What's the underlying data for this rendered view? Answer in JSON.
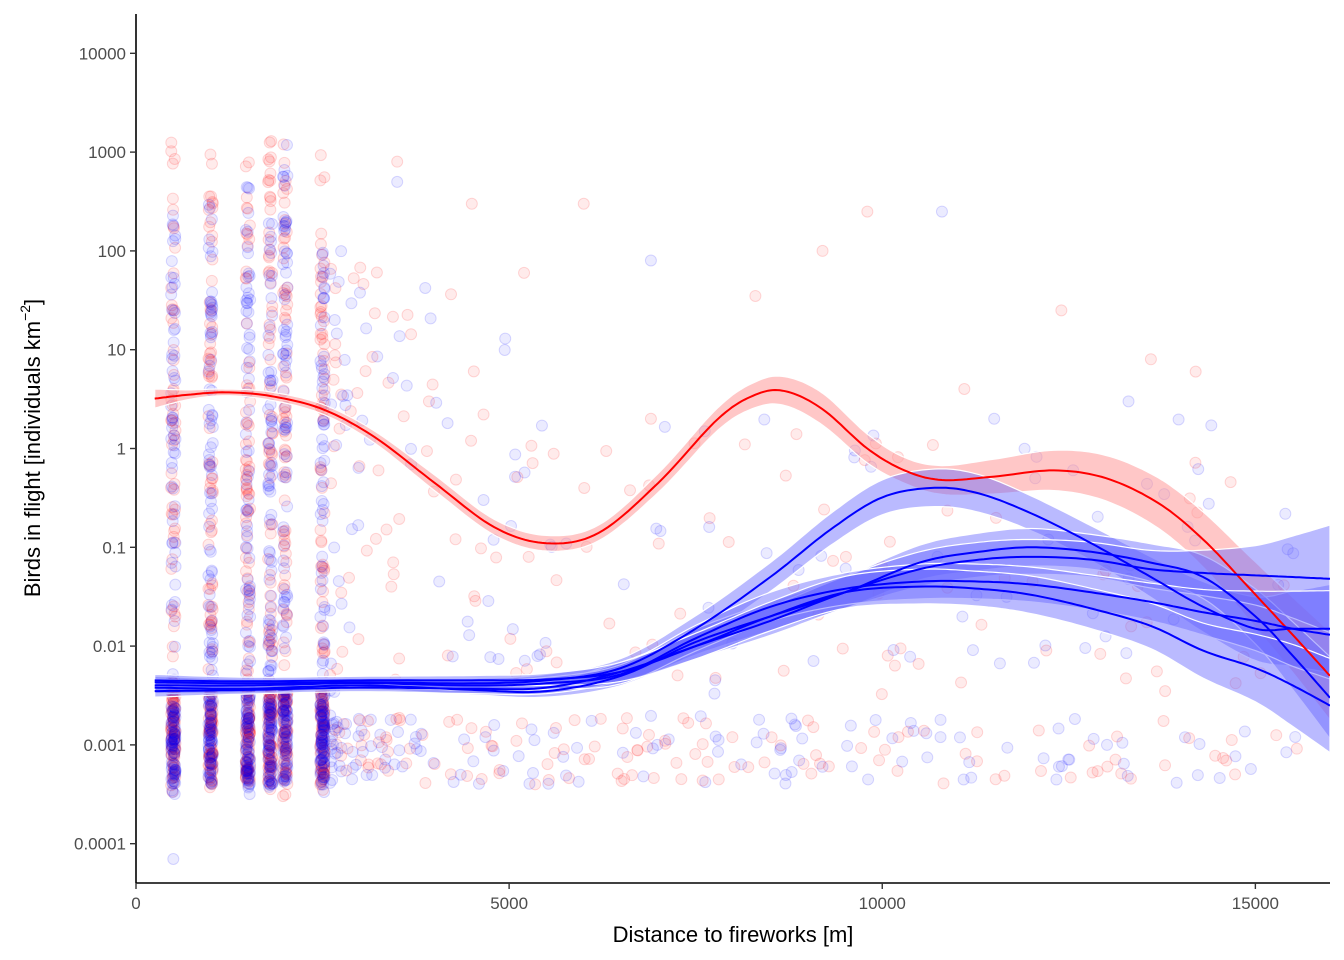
{
  "chart_data": {
    "type": "scatter",
    "xlabel": "Distance to fireworks [m]",
    "ylabel": {
      "prefix": "Birds in flight",
      "units": "individuals km",
      "exponent": "−2"
    },
    "scale": {
      "y": "log10"
    },
    "xlim": [
      0,
      16000
    ],
    "ylim": [
      4e-05,
      25000
    ],
    "x_ticks": [
      {
        "value": 0,
        "label": "0"
      },
      {
        "value": 5000,
        "label": "5000"
      },
      {
        "value": 10000,
        "label": "10000"
      },
      {
        "value": 15000,
        "label": "15000"
      }
    ],
    "y_ticks": [
      {
        "value": 0.0001,
        "label": "0.0001"
      },
      {
        "value": 0.001,
        "label": "0.001"
      },
      {
        "value": 0.01,
        "label": "0.01"
      },
      {
        "value": 0.1,
        "label": "0.1"
      },
      {
        "value": 1,
        "label": "1"
      },
      {
        "value": 10,
        "label": "10"
      },
      {
        "value": 100,
        "label": "100"
      },
      {
        "value": 1000,
        "label": "1000"
      },
      {
        "value": 10000,
        "label": "10000"
      }
    ],
    "grid": false,
    "legend": "none",
    "colors": {
      "red": "#ff0000",
      "blue": "#0000ff",
      "red_band": "#ff9999",
      "blue_band": "#6666ff",
      "axis": "#000000"
    },
    "scatter_series": [
      {
        "color": "red",
        "opacity": 0.08,
        "columns": [
          {
            "x": 500,
            "y_range": [
              0.0003,
              2500
            ]
          },
          {
            "x": 1000,
            "y_range": [
              0.0003,
              1400
            ]
          },
          {
            "x": 1500,
            "y_range": [
              0.0003,
              800
            ]
          },
          {
            "x": 1800,
            "y_range": [
              0.0003,
              1300
            ]
          },
          {
            "x": 2000,
            "y_range": [
              0.0003,
              1300
            ]
          },
          {
            "x": 2500,
            "y_range": [
              0.0003,
              1300
            ]
          }
        ],
        "scatter": [
          {
            "x": 3500,
            "y": 800
          },
          {
            "x": 4500,
            "y": 300
          },
          {
            "x": 5200,
            "y": 60
          },
          {
            "x": 6000,
            "y": 300
          },
          {
            "x": 8300,
            "y": 35
          },
          {
            "x": 9200,
            "y": 100
          },
          {
            "x": 9800,
            "y": 250
          },
          {
            "x": 12400,
            "y": 25
          },
          {
            "x": 13600,
            "y": 8
          },
          {
            "x": 14200,
            "y": 6
          },
          {
            "x": 11100,
            "y": 4
          },
          {
            "x": 6900,
            "y": 2
          }
        ]
      },
      {
        "color": "blue",
        "opacity": 0.08,
        "columns": [
          {
            "x": 500,
            "y_range": [
              0.0003,
              400
            ]
          },
          {
            "x": 1000,
            "y_range": [
              0.0003,
              300
            ]
          },
          {
            "x": 1500,
            "y_range": [
              0.0003,
              450
            ]
          },
          {
            "x": 1800,
            "y_range": [
              0.0003,
              200
            ]
          },
          {
            "x": 2000,
            "y_range": [
              0.0003,
              1400
            ]
          },
          {
            "x": 2500,
            "y_range": [
              0.0003,
              100
            ]
          }
        ],
        "scatter": [
          {
            "x": 500,
            "y": 7e-05
          },
          {
            "x": 3500,
            "y": 500
          },
          {
            "x": 6900,
            "y": 80
          },
          {
            "x": 10800,
            "y": 250
          },
          {
            "x": 9200,
            "y": 0.0006
          },
          {
            "x": 10100,
            "y": 0.05
          },
          {
            "x": 13300,
            "y": 3
          },
          {
            "x": 11500,
            "y": 2
          }
        ]
      }
    ],
    "smooth_series": [
      {
        "color": "red",
        "x": [
          250,
          700,
          1200,
          1800,
          2500,
          3200,
          4000,
          4800,
          5500,
          6200,
          7000,
          7800,
          8300,
          8700,
          9200,
          9800,
          10300,
          10800,
          11500,
          12300,
          13000,
          13700,
          14300,
          14900,
          15500,
          16000
        ],
        "y": [
          3.2,
          3.5,
          3.7,
          3.4,
          2.5,
          1.3,
          0.45,
          0.16,
          0.11,
          0.14,
          0.45,
          2.0,
          3.5,
          3.8,
          2.5,
          1.0,
          0.6,
          0.48,
          0.52,
          0.6,
          0.5,
          0.28,
          0.12,
          0.04,
          0.013,
          0.005
        ],
        "band_ratio": [
          1.25,
          1.12,
          1.08,
          1.1,
          1.12,
          1.15,
          1.2,
          1.2,
          1.2,
          1.2,
          1.25,
          1.3,
          1.35,
          1.4,
          1.45,
          1.4,
          1.35,
          1.4,
          1.5,
          1.6,
          1.7,
          1.8,
          1.9,
          2.1,
          2.4,
          2.8
        ]
      },
      {
        "color": "blue",
        "x": [
          250,
          1500,
          3000,
          4500,
          5500,
          6500,
          7500,
          8500,
          9300,
          10000,
          10700,
          11300,
          12000,
          12800,
          13600,
          14300,
          15000,
          15500,
          16000
        ],
        "y": [
          0.0043,
          0.0042,
          0.0043,
          0.0042,
          0.0045,
          0.006,
          0.015,
          0.05,
          0.15,
          0.32,
          0.4,
          0.35,
          0.22,
          0.11,
          0.05,
          0.025,
          0.015,
          0.015,
          0.015
        ],
        "band_ratio": [
          1.15,
          1.1,
          1.1,
          1.12,
          1.15,
          1.25,
          1.35,
          1.4,
          1.45,
          1.5,
          1.55,
          1.55,
          1.5,
          1.5,
          1.6,
          1.8,
          2.1,
          2.4,
          2.8
        ]
      },
      {
        "color": "blue",
        "x": [
          250,
          1500,
          3000,
          4500,
          5500,
          6500,
          7500,
          8500,
          9500,
          10500,
          11300,
          12000,
          12800,
          13600,
          14300,
          15000,
          15500,
          16000
        ],
        "y": [
          0.0038,
          0.0037,
          0.004,
          0.0036,
          0.0035,
          0.005,
          0.011,
          0.02,
          0.035,
          0.07,
          0.09,
          0.1,
          0.09,
          0.07,
          0.05,
          0.02,
          0.008,
          0.003
        ],
        "band_ratio": [
          1.15,
          1.1,
          1.1,
          1.12,
          1.15,
          1.25,
          1.35,
          1.4,
          1.45,
          1.5,
          1.55,
          1.55,
          1.5,
          1.55,
          1.65,
          1.9,
          2.2,
          2.6
        ]
      },
      {
        "color": "blue",
        "x": [
          250,
          1500,
          3000,
          4500,
          5500,
          6500,
          7500,
          8500,
          9500,
          10500,
          11300,
          12000,
          12800,
          13600,
          14300,
          15000,
          15500,
          16000
        ],
        "y": [
          0.0035,
          0.0036,
          0.0038,
          0.0037,
          0.0038,
          0.0055,
          0.01,
          0.018,
          0.035,
          0.06,
          0.075,
          0.08,
          0.075,
          0.06,
          0.055,
          0.052,
          0.05,
          0.048
        ],
        "band_ratio": [
          1.15,
          1.1,
          1.1,
          1.12,
          1.15,
          1.25,
          1.35,
          1.4,
          1.45,
          1.5,
          1.5,
          1.5,
          1.5,
          1.55,
          1.7,
          2.0,
          2.6,
          3.5
        ]
      },
      {
        "color": "blue",
        "x": [
          250,
          1500,
          3000,
          4500,
          5500,
          6500,
          7500,
          8500,
          9500,
          10500,
          11300,
          12000,
          12800,
          13600,
          14300,
          15000,
          15500,
          16000
        ],
        "y": [
          0.004,
          0.004,
          0.0042,
          0.004,
          0.0042,
          0.0052,
          0.012,
          0.025,
          0.038,
          0.045,
          0.045,
          0.042,
          0.035,
          0.028,
          0.022,
          0.018,
          0.015,
          0.013
        ],
        "band_ratio": [
          1.15,
          1.1,
          1.1,
          1.12,
          1.15,
          1.25,
          1.35,
          1.4,
          1.45,
          1.5,
          1.5,
          1.5,
          1.5,
          1.55,
          1.7,
          2.0,
          2.4,
          2.8
        ]
      },
      {
        "color": "blue",
        "x": [
          250,
          1500,
          3000,
          4500,
          5500,
          6500,
          7500,
          8500,
          9500,
          10500,
          11300,
          12000,
          12800,
          13600,
          14300,
          15000,
          15500,
          16000
        ],
        "y": [
          0.0045,
          0.0044,
          0.0045,
          0.0045,
          0.0046,
          0.0055,
          0.01,
          0.02,
          0.035,
          0.04,
          0.038,
          0.033,
          0.024,
          0.016,
          0.009,
          0.006,
          0.004,
          0.0025
        ],
        "band_ratio": [
          1.15,
          1.1,
          1.1,
          1.12,
          1.15,
          1.25,
          1.35,
          1.4,
          1.45,
          1.5,
          1.5,
          1.55,
          1.6,
          1.7,
          1.9,
          2.2,
          2.6,
          3.0
        ]
      }
    ]
  }
}
